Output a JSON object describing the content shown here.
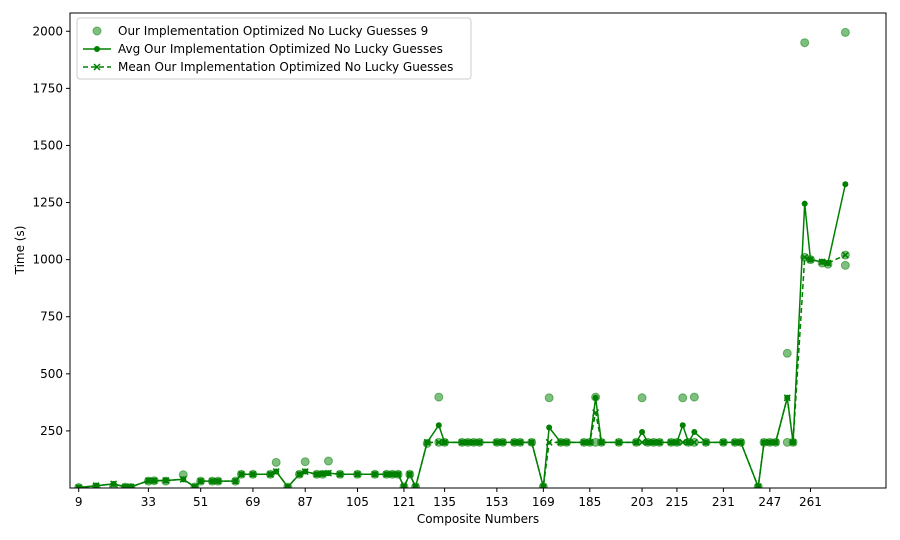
{
  "chart_data": {
    "type": "line",
    "xlabel": "Composite Numbers",
    "ylabel": "Time (s)",
    "xlim": [
      6,
      287
    ],
    "ylim": [
      0,
      2080
    ],
    "xticks": [
      9,
      33,
      51,
      69,
      87,
      105,
      121,
      135,
      153,
      169,
      185,
      203,
      215,
      231,
      247,
      261
    ],
    "yticks": [
      250,
      500,
      750,
      1000,
      1250,
      1500,
      1750,
      2000
    ],
    "legend_position": "upper left",
    "colors": {
      "main": "#008000"
    },
    "series": [
      {
        "name": "Our Implementation Optimized No Lucky Guesses 9",
        "style": "scatter",
        "points": [
          [
            9,
            2
          ],
          [
            15,
            5
          ],
          [
            21,
            8
          ],
          [
            25,
            4
          ],
          [
            27,
            2
          ],
          [
            33,
            30
          ],
          [
            35,
            32
          ],
          [
            39,
            30
          ],
          [
            45,
            58
          ],
          [
            49,
            5
          ],
          [
            51,
            30
          ],
          [
            55,
            30
          ],
          [
            57,
            30
          ],
          [
            63,
            30
          ],
          [
            65,
            60
          ],
          [
            69,
            60
          ],
          [
            75,
            60
          ],
          [
            77,
            112
          ],
          [
            81,
            4
          ],
          [
            85,
            60
          ],
          [
            87,
            115
          ],
          [
            91,
            60
          ],
          [
            93,
            60
          ],
          [
            95,
            118
          ],
          [
            99,
            60
          ],
          [
            105,
            60
          ],
          [
            111,
            60
          ],
          [
            115,
            60
          ],
          [
            117,
            60
          ],
          [
            119,
            60
          ],
          [
            121,
            5
          ],
          [
            123,
            60
          ],
          [
            125,
            5
          ],
          [
            129,
            195
          ],
          [
            133,
            398
          ],
          [
            133,
            200
          ],
          [
            135,
            200
          ],
          [
            141,
            200
          ],
          [
            143,
            200
          ],
          [
            145,
            200
          ],
          [
            147,
            200
          ],
          [
            153,
            200
          ],
          [
            155,
            200
          ],
          [
            159,
            200
          ],
          [
            161,
            200
          ],
          [
            165,
            200
          ],
          [
            169,
            5
          ],
          [
            171,
            395
          ],
          [
            175,
            200
          ],
          [
            177,
            200
          ],
          [
            183,
            200
          ],
          [
            185,
            200
          ],
          [
            187,
            398
          ],
          [
            187,
            200
          ],
          [
            189,
            200
          ],
          [
            195,
            200
          ],
          [
            201,
            200
          ],
          [
            203,
            395
          ],
          [
            205,
            200
          ],
          [
            207,
            200
          ],
          [
            209,
            200
          ],
          [
            213,
            200
          ],
          [
            215,
            200
          ],
          [
            217,
            395
          ],
          [
            219,
            200
          ],
          [
            221,
            200
          ],
          [
            221,
            398
          ],
          [
            225,
            200
          ],
          [
            231,
            200
          ],
          [
            235,
            200
          ],
          [
            237,
            200
          ],
          [
            243,
            5
          ],
          [
            245,
            200
          ],
          [
            247,
            200
          ],
          [
            249,
            200
          ],
          [
            253,
            590
          ],
          [
            253,
            200
          ],
          [
            255,
            200
          ],
          [
            259,
            1950
          ],
          [
            259,
            1010
          ],
          [
            261,
            1000
          ],
          [
            265,
            985
          ],
          [
            267,
            980
          ],
          [
            273,
            1995
          ],
          [
            273,
            975
          ],
          [
            273,
            1020
          ]
        ]
      },
      {
        "name": "Avg Our Implementation Optimized No Lucky Guesses",
        "style": "line-circle",
        "points": [
          [
            9,
            2
          ],
          [
            15,
            10
          ],
          [
            21,
            18
          ],
          [
            25,
            5
          ],
          [
            27,
            5
          ],
          [
            33,
            32
          ],
          [
            35,
            32
          ],
          [
            39,
            33
          ],
          [
            45,
            38
          ],
          [
            49,
            5
          ],
          [
            51,
            30
          ],
          [
            55,
            30
          ],
          [
            57,
            30
          ],
          [
            63,
            30
          ],
          [
            65,
            60
          ],
          [
            69,
            60
          ],
          [
            75,
            60
          ],
          [
            77,
            72
          ],
          [
            81,
            5
          ],
          [
            85,
            60
          ],
          [
            87,
            72
          ],
          [
            91,
            60
          ],
          [
            93,
            62
          ],
          [
            95,
            65
          ],
          [
            99,
            60
          ],
          [
            105,
            60
          ],
          [
            111,
            60
          ],
          [
            115,
            60
          ],
          [
            117,
            60
          ],
          [
            119,
            60
          ],
          [
            121,
            5
          ],
          [
            123,
            60
          ],
          [
            125,
            5
          ],
          [
            129,
            200
          ],
          [
            133,
            275
          ],
          [
            135,
            200
          ],
          [
            141,
            200
          ],
          [
            143,
            200
          ],
          [
            145,
            200
          ],
          [
            147,
            200
          ],
          [
            153,
            200
          ],
          [
            155,
            200
          ],
          [
            159,
            200
          ],
          [
            161,
            200
          ],
          [
            165,
            200
          ],
          [
            169,
            5
          ],
          [
            171,
            265
          ],
          [
            175,
            200
          ],
          [
            177,
            200
          ],
          [
            183,
            200
          ],
          [
            185,
            200
          ],
          [
            187,
            395
          ],
          [
            189,
            200
          ],
          [
            195,
            200
          ],
          [
            201,
            200
          ],
          [
            203,
            245
          ],
          [
            205,
            200
          ],
          [
            207,
            200
          ],
          [
            209,
            200
          ],
          [
            213,
            200
          ],
          [
            215,
            200
          ],
          [
            217,
            275
          ],
          [
            219,
            200
          ],
          [
            221,
            245
          ],
          [
            225,
            200
          ],
          [
            231,
            200
          ],
          [
            235,
            200
          ],
          [
            237,
            200
          ],
          [
            243,
            5
          ],
          [
            245,
            200
          ],
          [
            247,
            200
          ],
          [
            249,
            200
          ],
          [
            253,
            395
          ],
          [
            255,
            200
          ],
          [
            259,
            1245
          ],
          [
            261,
            1000
          ],
          [
            265,
            990
          ],
          [
            267,
            985
          ],
          [
            273,
            1330
          ]
        ]
      },
      {
        "name": "Mean Our Implementation Optimized No Lucky Guesses",
        "style": "dashed-x",
        "points": [
          [
            9,
            2
          ],
          [
            15,
            10
          ],
          [
            21,
            18
          ],
          [
            25,
            5
          ],
          [
            27,
            5
          ],
          [
            33,
            32
          ],
          [
            35,
            32
          ],
          [
            39,
            33
          ],
          [
            45,
            38
          ],
          [
            49,
            5
          ],
          [
            51,
            30
          ],
          [
            55,
            30
          ],
          [
            57,
            30
          ],
          [
            63,
            30
          ],
          [
            65,
            60
          ],
          [
            69,
            60
          ],
          [
            75,
            60
          ],
          [
            77,
            72
          ],
          [
            81,
            5
          ],
          [
            85,
            60
          ],
          [
            87,
            72
          ],
          [
            91,
            60
          ],
          [
            93,
            62
          ],
          [
            95,
            65
          ],
          [
            99,
            60
          ],
          [
            105,
            60
          ],
          [
            111,
            60
          ],
          [
            115,
            60
          ],
          [
            117,
            60
          ],
          [
            119,
            60
          ],
          [
            121,
            5
          ],
          [
            123,
            60
          ],
          [
            125,
            5
          ],
          [
            129,
            200
          ],
          [
            133,
            200
          ],
          [
            135,
            200
          ],
          [
            141,
            200
          ],
          [
            143,
            200
          ],
          [
            145,
            200
          ],
          [
            147,
            200
          ],
          [
            153,
            200
          ],
          [
            155,
            200
          ],
          [
            159,
            200
          ],
          [
            161,
            200
          ],
          [
            165,
            200
          ],
          [
            169,
            5
          ],
          [
            171,
            200
          ],
          [
            175,
            200
          ],
          [
            177,
            200
          ],
          [
            183,
            200
          ],
          [
            185,
            200
          ],
          [
            187,
            330
          ],
          [
            189,
            200
          ],
          [
            195,
            200
          ],
          [
            201,
            200
          ],
          [
            203,
            200
          ],
          [
            205,
            200
          ],
          [
            207,
            200
          ],
          [
            209,
            200
          ],
          [
            213,
            200
          ],
          [
            215,
            200
          ],
          [
            217,
            200
          ],
          [
            219,
            200
          ],
          [
            221,
            200
          ],
          [
            225,
            200
          ],
          [
            231,
            200
          ],
          [
            235,
            200
          ],
          [
            237,
            200
          ],
          [
            243,
            5
          ],
          [
            245,
            200
          ],
          [
            247,
            200
          ],
          [
            249,
            200
          ],
          [
            253,
            395
          ],
          [
            255,
            200
          ],
          [
            259,
            1010
          ],
          [
            261,
            1000
          ],
          [
            265,
            990
          ],
          [
            267,
            985
          ],
          [
            273,
            1020
          ]
        ]
      }
    ]
  }
}
